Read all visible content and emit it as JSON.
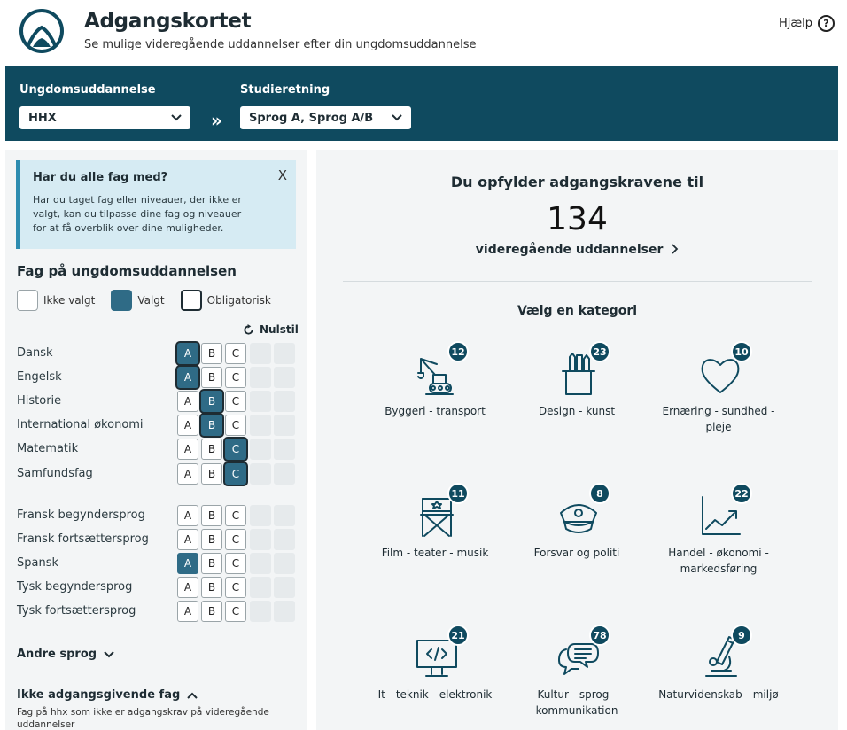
{
  "header": {
    "title": "Adgangskortet",
    "subtitle": "Se mulige videregående uddannelser efter din ungdomsuddannelse",
    "help_label": "Hjælp",
    "help_icon": "question-circle-icon"
  },
  "selection": {
    "ungdom_label": "Ungdomsuddannelse",
    "ungdom_value": "HHX",
    "studie_label": "Studieretning",
    "studie_value": "Sprog A, Sprog A/B",
    "arrow": "»"
  },
  "info": {
    "title": "Har du alle fag med?",
    "text": "Har du taget fag eller niveauer, der ikke er valgt, kan du tilpasse dine fag og niveauer for at få overblik over dine muligheder.",
    "close": "X"
  },
  "fag": {
    "heading": "Fag på ungdomsuddannelsen",
    "legend": {
      "ikke_valgt": "Ikke valgt",
      "valgt": "Valgt",
      "obligatorisk": "Obligatorisk"
    },
    "nulstil": "Nulstil",
    "levels": [
      "A",
      "B",
      "C"
    ],
    "subjects": [
      {
        "name": "Dansk",
        "selected": "A",
        "obligatory": true
      },
      {
        "name": "Engelsk",
        "selected": "A",
        "obligatory": true
      },
      {
        "name": "Historie",
        "selected": "B",
        "obligatory": true
      },
      {
        "name": "International økonomi",
        "selected": "B",
        "obligatory": true
      },
      {
        "name": "Matematik",
        "selected": "C",
        "obligatory": true
      },
      {
        "name": "Samfundsfag",
        "selected": "C",
        "obligatory": true
      },
      {
        "name": "Fransk begyndersprog",
        "selected": "",
        "obligatory": false
      },
      {
        "name": "Fransk fortsættersprog",
        "selected": "",
        "obligatory": false
      },
      {
        "name": "Spansk",
        "selected": "A",
        "obligatory": false
      },
      {
        "name": "Tysk begyndersprog",
        "selected": "",
        "obligatory": false
      },
      {
        "name": "Tysk fortsættersprog",
        "selected": "",
        "obligatory": false
      }
    ],
    "andre_sprog": "Andre sprog",
    "ikke_adgang_title": "Ikke adgangsgivende fag",
    "ikke_adgang_desc": "Fag på hhx som ikke er adgangskrav på videregående uddannelser"
  },
  "result": {
    "heading": "Du opfylder adgangskravene til",
    "count": "134",
    "link": "videregående uddannelser",
    "category_heading": "Vælg en kategori",
    "categories": [
      {
        "label": "Byggeri - transport",
        "count": "12",
        "icon": "crane-icon"
      },
      {
        "label": "Design - kunst",
        "count": "23",
        "icon": "pencil-cup-icon"
      },
      {
        "label": "Ernæring - sundhed - pleje",
        "count": "10",
        "icon": "heart-icon"
      },
      {
        "label": "Film - teater - musik",
        "count": "11",
        "icon": "director-chair-icon"
      },
      {
        "label": "Forsvar og politi",
        "count": "8",
        "icon": "police-cap-icon"
      },
      {
        "label": "Handel - økonomi - markedsføring",
        "count": "22",
        "icon": "growth-chart-icon"
      },
      {
        "label": "It - teknik - elektronik",
        "count": "21",
        "icon": "monitor-code-icon"
      },
      {
        "label": "Kultur - sprog - kommunikation",
        "count": "78",
        "icon": "speech-bubbles-icon"
      },
      {
        "label": "Naturvidenskab - miljø",
        "count": "9",
        "icon": "microscope-icon"
      }
    ]
  }
}
